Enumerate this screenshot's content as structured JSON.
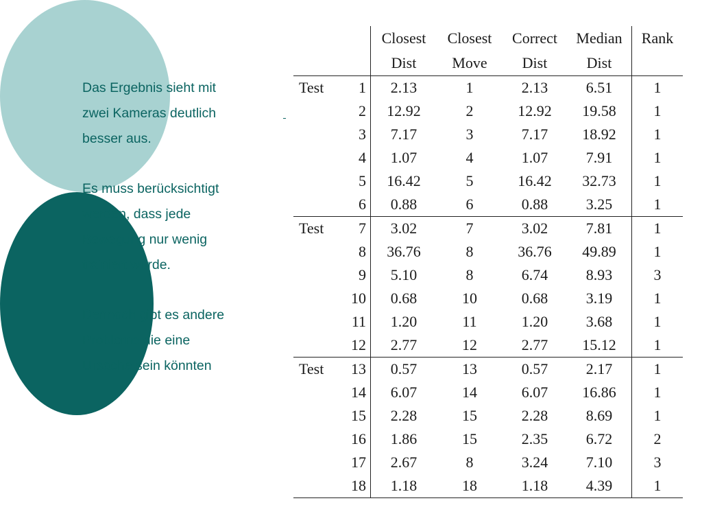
{
  "text_block": {
    "para1": [
      "Das Ergebnis sieht mit",
      "zwei Kameras deutlich",
      "besser aus."
    ],
    "para2": [
      "Es muss berücksichtigt",
      "werden, dass jede",
      "Bewegung nur wenig",
      "trainiert wurde."
    ],
    "para3": [
      "Dennoch gibt es andere",
      "Probleme die eine",
      "Ursache sein könnten"
    ]
  },
  "table": {
    "headers": {
      "closest_dist": [
        "Closest",
        "Dist"
      ],
      "closest_move": [
        "Closest",
        "Move"
      ],
      "correct_dist": [
        "Correct",
        "Dist"
      ],
      "median_dist": [
        "Median",
        "Dist"
      ],
      "rank": "Rank"
    },
    "group_label": "Test",
    "rows": [
      [
        "1",
        "2.13",
        "1",
        "2.13",
        "6.51",
        "1"
      ],
      [
        "2",
        "12.92",
        "2",
        "12.92",
        "19.58",
        "1"
      ],
      [
        "3",
        "7.17",
        "3",
        "7.17",
        "18.92",
        "1"
      ],
      [
        "4",
        "1.07",
        "4",
        "1.07",
        "7.91",
        "1"
      ],
      [
        "5",
        "16.42",
        "5",
        "16.42",
        "32.73",
        "1"
      ],
      [
        "6",
        "0.88",
        "6",
        "0.88",
        "3.25",
        "1"
      ],
      [
        "7",
        "3.02",
        "7",
        "3.02",
        "7.81",
        "1"
      ],
      [
        "8",
        "36.76",
        "8",
        "36.76",
        "49.89",
        "1"
      ],
      [
        "9",
        "5.10",
        "8",
        "6.74",
        "8.93",
        "3"
      ],
      [
        "10",
        "0.68",
        "10",
        "0.68",
        "3.19",
        "1"
      ],
      [
        "11",
        "1.20",
        "11",
        "1.20",
        "3.68",
        "1"
      ],
      [
        "12",
        "2.77",
        "12",
        "2.77",
        "15.12",
        "1"
      ],
      [
        "13",
        "0.57",
        "13",
        "0.57",
        "2.17",
        "1"
      ],
      [
        "14",
        "6.07",
        "14",
        "6.07",
        "16.86",
        "1"
      ],
      [
        "15",
        "2.28",
        "15",
        "2.28",
        "8.69",
        "1"
      ],
      [
        "16",
        "1.86",
        "15",
        "2.35",
        "6.72",
        "2"
      ],
      [
        "17",
        "2.67",
        "8",
        "3.24",
        "7.10",
        "3"
      ],
      [
        "18",
        "1.18",
        "18",
        "1.18",
        "4.39",
        "1"
      ]
    ]
  },
  "colors": {
    "accent_dark": "#0b6461",
    "accent_light": "#a8d2d1",
    "text": "#0b6461"
  }
}
